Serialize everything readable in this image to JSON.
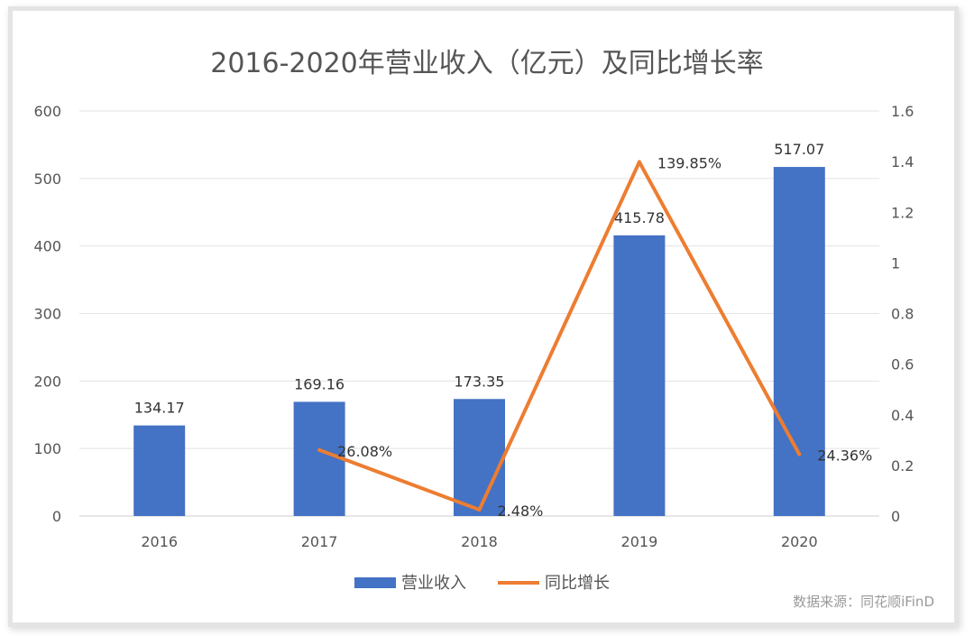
{
  "chart_data": {
    "type": "bar+line",
    "title": "2016-2020年营业收入（亿元）及同比增长率",
    "categories": [
      "2016",
      "2017",
      "2018",
      "2019",
      "2020"
    ],
    "series": [
      {
        "name": "营业收入",
        "type": "bar",
        "axis": "left",
        "color": "#4472C4",
        "values": [
          134.17,
          169.16,
          173.35,
          415.78,
          517.07
        ],
        "labels": [
          "134.17",
          "169.16",
          "173.35",
          "415.78",
          "517.07"
        ]
      },
      {
        "name": "同比增长",
        "type": "line",
        "axis": "right",
        "color": "#ED7D31",
        "values": [
          null,
          0.2608,
          0.0248,
          1.3985,
          0.2436
        ],
        "labels": [
          "",
          "26.08%",
          "2.48%",
          "139.85%",
          "24.36%"
        ]
      }
    ],
    "y_left": {
      "range": [
        0,
        600
      ],
      "ticks": [
        "0",
        "100",
        "200",
        "300",
        "400",
        "500",
        "600"
      ]
    },
    "y_right": {
      "range": [
        0,
        1.6
      ],
      "ticks": [
        "0",
        "0.2",
        "0.4",
        "0.6",
        "0.8",
        "1",
        "1.2",
        "1.4",
        "1.6"
      ]
    },
    "grid": true,
    "legend": "bottom"
  },
  "source": "数据来源：同花顺iFinD"
}
